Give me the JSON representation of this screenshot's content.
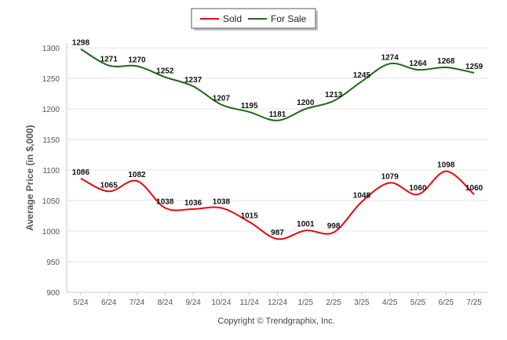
{
  "chart_data": {
    "type": "line",
    "title": "",
    "xlabel": "",
    "ylabel": "Average Price (in $,000)",
    "ylim": [
      900,
      1300
    ],
    "yticks": [
      900,
      950,
      1000,
      1050,
      1100,
      1150,
      1200,
      1250,
      1300
    ],
    "grid": true,
    "legend_position": "top-center",
    "categories": [
      "5/24",
      "6/24",
      "7/24",
      "8/24",
      "9/24",
      "10/24",
      "11/24",
      "12/24",
      "1/25",
      "2/25",
      "3/25",
      "4/25",
      "5/25",
      "6/25",
      "7/25"
    ],
    "series": [
      {
        "name": "Sold",
        "color": "#e8080c",
        "values": [
          1086,
          1065,
          1082,
          1038,
          1036,
          1038,
          1015,
          987,
          1001,
          998,
          1048,
          1079,
          1060,
          1098,
          1060
        ]
      },
      {
        "name": "For Sale",
        "color": "#1b6a12",
        "values": [
          1298,
          1271,
          1270,
          1252,
          1237,
          1207,
          1195,
          1181,
          1200,
          1213,
          1245,
          1274,
          1264,
          1268,
          1259
        ]
      }
    ]
  },
  "footer": {
    "credit": "Copyright © Trendgraphix, Inc."
  }
}
